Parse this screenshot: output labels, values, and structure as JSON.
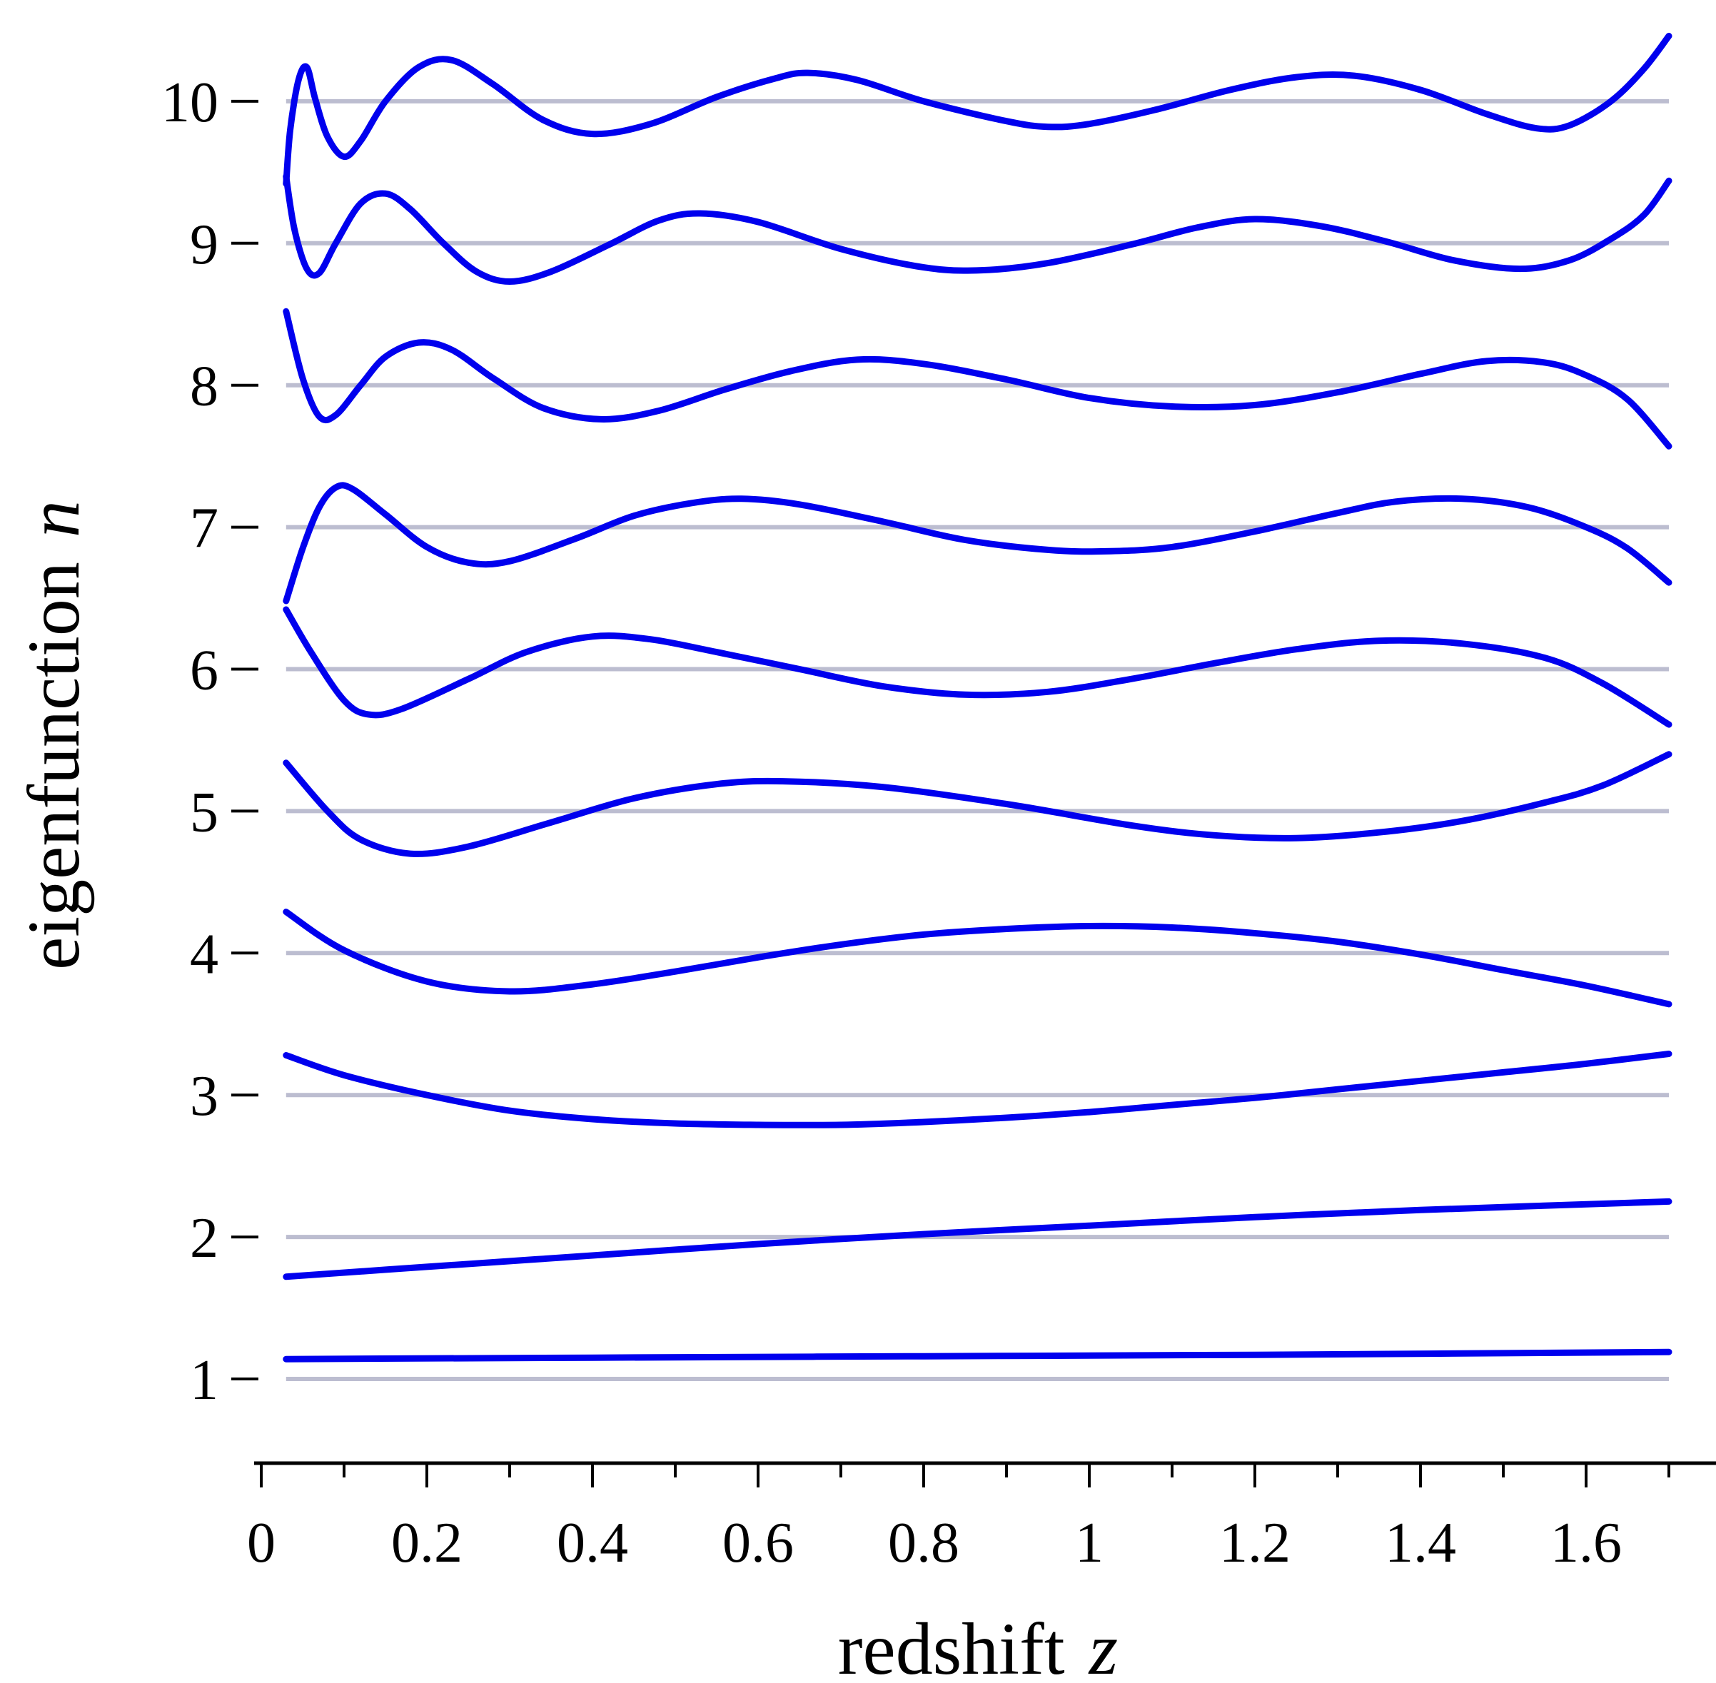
{
  "chart_data": {
    "type": "line",
    "xlabel": "redshift",
    "xlabel_var": "z",
    "ylabel": "eigenfunction",
    "ylabel_var": "n",
    "xlim": [
      0,
      1.75
    ],
    "ylim": [
      0.45,
      10.7
    ],
    "x_ticks": [
      0,
      0.2,
      0.4,
      0.6,
      0.8,
      1,
      1.2,
      1.4,
      1.6
    ],
    "x_tick_labels": [
      "0",
      "0.2",
      "0.4",
      "0.6",
      "0.8",
      "1",
      "1.2",
      "1.4",
      "1.6"
    ],
    "x_minor_ticks": [
      0.1,
      0.3,
      0.5,
      0.7,
      0.9,
      1.1,
      1.3,
      1.5,
      1.7
    ],
    "y_ticks": [
      1,
      2,
      3,
      4,
      5,
      6,
      7,
      8,
      9,
      10
    ],
    "y_tick_labels": [
      "1",
      "2",
      "3",
      "4",
      "5",
      "6",
      "7",
      "8",
      "9",
      "10"
    ],
    "reference_lines": [
      1,
      2,
      3,
      4,
      5,
      6,
      7,
      8,
      9,
      10
    ],
    "reference_line_xrange": [
      0.03,
      1.7
    ],
    "line_color": "#0000ee",
    "reference_line_color": "#bcbdd0",
    "grid": false,
    "series": [
      {
        "points": [
          [
            0.03,
            1.14
          ],
          [
            0.4,
            1.15
          ],
          [
            0.8,
            1.16
          ],
          [
            1.2,
            1.17
          ],
          [
            1.7,
            1.19
          ]
        ]
      },
      {
        "points": [
          [
            0.03,
            1.72
          ],
          [
            0.2,
            1.79
          ],
          [
            0.4,
            1.87
          ],
          [
            0.6,
            1.95
          ],
          [
            0.8,
            2.02
          ],
          [
            1,
            2.08
          ],
          [
            1.2,
            2.14
          ],
          [
            1.4,
            2.19
          ],
          [
            1.7,
            2.25
          ]
        ]
      },
      {
        "points": [
          [
            0.03,
            3.28
          ],
          [
            0.1,
            3.14
          ],
          [
            0.2,
            3.0
          ],
          [
            0.3,
            2.89
          ],
          [
            0.4,
            2.83
          ],
          [
            0.5,
            2.8
          ],
          [
            0.6,
            2.79
          ],
          [
            0.7,
            2.79
          ],
          [
            0.8,
            2.81
          ],
          [
            0.9,
            2.84
          ],
          [
            1.0,
            2.88
          ],
          [
            1.1,
            2.93
          ],
          [
            1.2,
            2.98
          ],
          [
            1.3,
            3.04
          ],
          [
            1.4,
            3.1
          ],
          [
            1.5,
            3.16
          ],
          [
            1.6,
            3.22
          ],
          [
            1.7,
            3.29
          ]
        ]
      },
      {
        "points": [
          [
            0.03,
            4.29
          ],
          [
            0.1,
            4.02
          ],
          [
            0.2,
            3.8
          ],
          [
            0.3,
            3.73
          ],
          [
            0.4,
            3.78
          ],
          [
            0.5,
            3.87
          ],
          [
            0.6,
            3.97
          ],
          [
            0.7,
            4.06
          ],
          [
            0.8,
            4.13
          ],
          [
            0.9,
            4.17
          ],
          [
            1.0,
            4.19
          ],
          [
            1.1,
            4.18
          ],
          [
            1.2,
            4.14
          ],
          [
            1.3,
            4.08
          ],
          [
            1.4,
            3.99
          ],
          [
            1.5,
            3.88
          ],
          [
            1.6,
            3.77
          ],
          [
            1.7,
            3.64
          ]
        ]
      },
      {
        "points": [
          [
            0.03,
            5.34
          ],
          [
            0.08,
            5.0
          ],
          [
            0.12,
            4.8
          ],
          [
            0.18,
            4.7
          ],
          [
            0.25,
            4.75
          ],
          [
            0.35,
            4.92
          ],
          [
            0.45,
            5.09
          ],
          [
            0.55,
            5.19
          ],
          [
            0.63,
            5.21
          ],
          [
            0.75,
            5.17
          ],
          [
            0.9,
            5.05
          ],
          [
            1.05,
            4.9
          ],
          [
            1.15,
            4.83
          ],
          [
            1.25,
            4.81
          ],
          [
            1.35,
            4.85
          ],
          [
            1.45,
            4.93
          ],
          [
            1.55,
            5.06
          ],
          [
            1.62,
            5.18
          ],
          [
            1.7,
            5.4
          ]
        ]
      },
      {
        "points": [
          [
            0.03,
            6.42
          ],
          [
            0.06,
            6.12
          ],
          [
            0.1,
            5.78
          ],
          [
            0.13,
            5.68
          ],
          [
            0.17,
            5.72
          ],
          [
            0.25,
            5.93
          ],
          [
            0.32,
            6.12
          ],
          [
            0.4,
            6.23
          ],
          [
            0.47,
            6.21
          ],
          [
            0.55,
            6.12
          ],
          [
            0.65,
            6.0
          ],
          [
            0.75,
            5.88
          ],
          [
            0.85,
            5.82
          ],
          [
            0.95,
            5.84
          ],
          [
            1.05,
            5.93
          ],
          [
            1.15,
            6.04
          ],
          [
            1.25,
            6.14
          ],
          [
            1.35,
            6.2
          ],
          [
            1.45,
            6.18
          ],
          [
            1.55,
            6.08
          ],
          [
            1.62,
            5.9
          ],
          [
            1.7,
            5.61
          ]
        ]
      },
      {
        "points": [
          [
            0.03,
            6.48
          ],
          [
            0.05,
            6.85
          ],
          [
            0.07,
            7.14
          ],
          [
            0.09,
            7.28
          ],
          [
            0.11,
            7.27
          ],
          [
            0.15,
            7.09
          ],
          [
            0.2,
            6.86
          ],
          [
            0.25,
            6.75
          ],
          [
            0.3,
            6.76
          ],
          [
            0.38,
            6.92
          ],
          [
            0.45,
            7.08
          ],
          [
            0.52,
            7.17
          ],
          [
            0.58,
            7.2
          ],
          [
            0.65,
            7.16
          ],
          [
            0.75,
            7.04
          ],
          [
            0.85,
            6.91
          ],
          [
            0.95,
            6.84
          ],
          [
            1.02,
            6.83
          ],
          [
            1.1,
            6.86
          ],
          [
            1.2,
            6.97
          ],
          [
            1.3,
            7.1
          ],
          [
            1.37,
            7.18
          ],
          [
            1.45,
            7.2
          ],
          [
            1.53,
            7.14
          ],
          [
            1.6,
            7.0
          ],
          [
            1.65,
            6.85
          ],
          [
            1.7,
            6.61
          ]
        ]
      },
      {
        "points": [
          [
            0.03,
            8.52
          ],
          [
            0.05,
            8.05
          ],
          [
            0.07,
            7.78
          ],
          [
            0.09,
            7.79
          ],
          [
            0.12,
            8.0
          ],
          [
            0.15,
            8.2
          ],
          [
            0.19,
            8.3
          ],
          [
            0.23,
            8.25
          ],
          [
            0.28,
            8.05
          ],
          [
            0.34,
            7.84
          ],
          [
            0.41,
            7.76
          ],
          [
            0.48,
            7.82
          ],
          [
            0.56,
            7.97
          ],
          [
            0.64,
            8.1
          ],
          [
            0.72,
            8.18
          ],
          [
            0.8,
            8.15
          ],
          [
            0.9,
            8.04
          ],
          [
            1.0,
            7.91
          ],
          [
            1.1,
            7.85
          ],
          [
            1.2,
            7.86
          ],
          [
            1.3,
            7.95
          ],
          [
            1.4,
            8.08
          ],
          [
            1.48,
            8.17
          ],
          [
            1.55,
            8.16
          ],
          [
            1.6,
            8.07
          ],
          [
            1.65,
            7.9
          ],
          [
            1.7,
            7.57
          ]
        ]
      },
      {
        "points": [
          [
            0.03,
            9.47
          ],
          [
            0.04,
            9.1
          ],
          [
            0.055,
            8.82
          ],
          [
            0.07,
            8.79
          ],
          [
            0.09,
            9.0
          ],
          [
            0.12,
            9.28
          ],
          [
            0.15,
            9.35
          ],
          [
            0.18,
            9.24
          ],
          [
            0.22,
            9.0
          ],
          [
            0.26,
            8.8
          ],
          [
            0.3,
            8.73
          ],
          [
            0.35,
            8.8
          ],
          [
            0.42,
            8.99
          ],
          [
            0.48,
            9.16
          ],
          [
            0.53,
            9.21
          ],
          [
            0.6,
            9.15
          ],
          [
            0.7,
            8.96
          ],
          [
            0.8,
            8.83
          ],
          [
            0.87,
            8.81
          ],
          [
            0.95,
            8.86
          ],
          [
            1.05,
            8.99
          ],
          [
            1.13,
            9.11
          ],
          [
            1.2,
            9.17
          ],
          [
            1.28,
            9.12
          ],
          [
            1.36,
            9.01
          ],
          [
            1.44,
            8.88
          ],
          [
            1.52,
            8.82
          ],
          [
            1.58,
            8.88
          ],
          [
            1.63,
            9.03
          ],
          [
            1.67,
            9.2
          ],
          [
            1.7,
            9.44
          ]
        ]
      },
      {
        "points": [
          [
            0.03,
            9.42
          ],
          [
            0.035,
            9.8
          ],
          [
            0.045,
            10.15
          ],
          [
            0.055,
            10.24
          ],
          [
            0.065,
            10.02
          ],
          [
            0.08,
            9.75
          ],
          [
            0.1,
            9.61
          ],
          [
            0.12,
            9.72
          ],
          [
            0.15,
            10.0
          ],
          [
            0.19,
            10.24
          ],
          [
            0.23,
            10.29
          ],
          [
            0.28,
            10.12
          ],
          [
            0.34,
            9.87
          ],
          [
            0.4,
            9.77
          ],
          [
            0.47,
            9.84
          ],
          [
            0.55,
            10.03
          ],
          [
            0.62,
            10.16
          ],
          [
            0.66,
            10.2
          ],
          [
            0.72,
            10.15
          ],
          [
            0.8,
            10.0
          ],
          [
            0.9,
            9.86
          ],
          [
            0.95,
            9.82
          ],
          [
            1.0,
            9.84
          ],
          [
            1.08,
            9.94
          ],
          [
            1.17,
            10.08
          ],
          [
            1.25,
            10.17
          ],
          [
            1.32,
            10.18
          ],
          [
            1.4,
            10.08
          ],
          [
            1.48,
            9.91
          ],
          [
            1.54,
            9.81
          ],
          [
            1.58,
            9.83
          ],
          [
            1.63,
            10.0
          ],
          [
            1.67,
            10.23
          ],
          [
            1.7,
            10.46
          ]
        ]
      }
    ]
  }
}
